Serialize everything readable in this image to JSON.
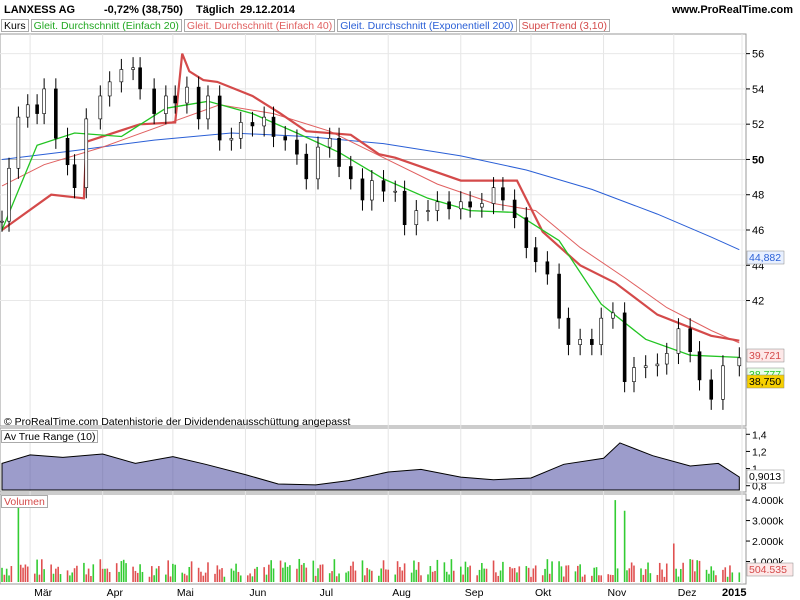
{
  "header": {
    "instrument": "LANXESS AG",
    "change": "-0,72% (38,750)",
    "period": "Täglich",
    "date": "29.12.2014",
    "site": "www.ProRealTime.com"
  },
  "legend": {
    "price": "Kurs",
    "sma20": "Gleit. Durchschnitt (Einfach 20)",
    "sma40": "Gleit. Durchschnitt (Einfach 40)",
    "ema200": "Gleit. Durchschnitt (Exponentiell 200)",
    "supertrend": "SuperTrend (3,10)",
    "atr": "Av True Range (10)",
    "volume": "Volumen"
  },
  "footnote": "© ProRealTime.com  Datenhistorie der Dividendenausschüttung angepasst",
  "colors": {
    "sma20": "#22c422",
    "sma40": "#e06060",
    "ema200": "#2a5fd6",
    "supertrend": "#d44a4a",
    "atr_fill": "#4a4aa0",
    "vol_up": "#33cc33",
    "vol_down": "#e05050",
    "last_price_box": "#f7d000"
  },
  "chart_data": [
    {
      "type": "line",
      "panel": "price",
      "ylim": [
        35,
        57
      ],
      "yticks": [
        42,
        44,
        46,
        48,
        50,
        52,
        54,
        56
      ],
      "x_months": [
        "Mär",
        "Apr",
        "Mai",
        "Jun",
        "Jul",
        "Aug",
        "Sep",
        "Okt",
        "Nov",
        "Dez",
        "2015"
      ],
      "x_range": [
        "2014-02-17",
        "2014-12-31"
      ],
      "price_close": [
        [
          "2014-02-17",
          46.5
        ],
        [
          "2014-02-20",
          49.5
        ],
        [
          "2014-02-24",
          52.4
        ],
        [
          "2014-02-28",
          53.1
        ],
        [
          "2014-03-04",
          52.6
        ],
        [
          "2014-03-07",
          54.0
        ],
        [
          "2014-03-12",
          51.2
        ],
        [
          "2014-03-17",
          49.7
        ],
        [
          "2014-03-20",
          48.4
        ],
        [
          "2014-03-25",
          52.3
        ],
        [
          "2014-03-31",
          53.6
        ],
        [
          "2014-04-04",
          54.4
        ],
        [
          "2014-04-09",
          55.1
        ],
        [
          "2014-04-14",
          55.2
        ],
        [
          "2014-04-17",
          54.0
        ],
        [
          "2014-04-23",
          52.6
        ],
        [
          "2014-04-28",
          53.6
        ],
        [
          "2014-05-02",
          53.2
        ],
        [
          "2014-05-07",
          54.1
        ],
        [
          "2014-05-12",
          52.3
        ],
        [
          "2014-05-16",
          53.6
        ],
        [
          "2014-05-21",
          51.1
        ],
        [
          "2014-05-26",
          51.2
        ],
        [
          "2014-05-30",
          52.1
        ],
        [
          "2014-06-04",
          51.9
        ],
        [
          "2014-06-09",
          52.4
        ],
        [
          "2014-06-13",
          51.3
        ],
        [
          "2014-06-18",
          51.1
        ],
        [
          "2014-06-23",
          50.3
        ],
        [
          "2014-06-27",
          48.9
        ],
        [
          "2014-07-02",
          50.7
        ],
        [
          "2014-07-07",
          51.2
        ],
        [
          "2014-07-11",
          49.6
        ],
        [
          "2014-07-16",
          48.9
        ],
        [
          "2014-07-21",
          47.7
        ],
        [
          "2014-07-25",
          48.8
        ],
        [
          "2014-07-30",
          48.2
        ],
        [
          "2014-08-04",
          48.2
        ],
        [
          "2014-08-08",
          46.3
        ],
        [
          "2014-08-13",
          47.1
        ],
        [
          "2014-08-18",
          47.1
        ],
        [
          "2014-08-22",
          47.6
        ],
        [
          "2014-08-27",
          47.2
        ],
        [
          "2014-09-01",
          47.6
        ],
        [
          "2014-09-05",
          47.3
        ],
        [
          "2014-09-10",
          47.5
        ],
        [
          "2014-09-15",
          48.4
        ],
        [
          "2014-09-19",
          47.7
        ],
        [
          "2014-09-24",
          46.7
        ],
        [
          "2014-09-29",
          45.0
        ],
        [
          "2014-10-03",
          44.2
        ],
        [
          "2014-10-08",
          43.5
        ],
        [
          "2014-10-13",
          41.0
        ],
        [
          "2014-10-17",
          39.5
        ],
        [
          "2014-10-22",
          39.8
        ],
        [
          "2014-10-27",
          39.5
        ],
        [
          "2014-10-31",
          41.0
        ],
        [
          "2014-11-05",
          41.3
        ],
        [
          "2014-11-10",
          37.4
        ],
        [
          "2014-11-14",
          38.2
        ],
        [
          "2014-11-19",
          38.3
        ],
        [
          "2014-11-24",
          38.4
        ],
        [
          "2014-11-28",
          39.0
        ],
        [
          "2014-12-03",
          40.4
        ],
        [
          "2014-12-08",
          39.1
        ],
        [
          "2014-12-12",
          37.5
        ],
        [
          "2014-12-17",
          36.4
        ],
        [
          "2014-12-22",
          38.3
        ],
        [
          "2014-12-29",
          38.75
        ]
      ],
      "sma20": [
        [
          "2014-02-17",
          46.0
        ],
        [
          "2014-03-04",
          50.8
        ],
        [
          "2014-03-20",
          51.5
        ],
        [
          "2014-04-09",
          51.3
        ],
        [
          "2014-04-28",
          52.9
        ],
        [
          "2014-05-16",
          53.3
        ],
        [
          "2014-06-04",
          52.6
        ],
        [
          "2014-06-23",
          51.5
        ],
        [
          "2014-07-11",
          50.4
        ],
        [
          "2014-07-30",
          48.9
        ],
        [
          "2014-08-18",
          47.8
        ],
        [
          "2014-09-05",
          47.1
        ],
        [
          "2014-09-24",
          47.0
        ],
        [
          "2014-10-13",
          45.4
        ],
        [
          "2014-10-31",
          41.8
        ],
        [
          "2014-11-19",
          39.8
        ],
        [
          "2014-12-08",
          38.9
        ],
        [
          "2014-12-29",
          38.777
        ]
      ],
      "sma40": [
        [
          "2014-02-17",
          48.5
        ],
        [
          "2014-03-07",
          49.7
        ],
        [
          "2014-04-01",
          50.7
        ],
        [
          "2014-04-28",
          52.0
        ],
        [
          "2014-05-21",
          53.1
        ],
        [
          "2014-06-13",
          52.6
        ],
        [
          "2014-07-07",
          51.6
        ],
        [
          "2014-07-30",
          50.1
        ],
        [
          "2014-08-22",
          48.6
        ],
        [
          "2014-09-15",
          47.5
        ],
        [
          "2014-10-03",
          47.1
        ],
        [
          "2014-10-22",
          45.0
        ],
        [
          "2014-11-10",
          43.3
        ],
        [
          "2014-11-28",
          41.6
        ],
        [
          "2014-12-17",
          40.3
        ],
        [
          "2014-12-29",
          39.6
        ]
      ],
      "ema200": [
        [
          "2014-02-17",
          50.0
        ],
        [
          "2014-03-20",
          50.5
        ],
        [
          "2014-04-23",
          51.1
        ],
        [
          "2014-05-26",
          51.5
        ],
        [
          "2014-06-27",
          51.3
        ],
        [
          "2014-07-30",
          50.9
        ],
        [
          "2014-09-01",
          50.2
        ],
        [
          "2014-09-29",
          49.4
        ],
        [
          "2014-10-27",
          48.3
        ],
        [
          "2014-11-24",
          46.9
        ],
        [
          "2014-12-17",
          45.6
        ],
        [
          "2014-12-29",
          44.882
        ]
      ],
      "supertrend": [
        [
          "2014-02-17",
          46.0
        ],
        [
          "2014-03-10",
          48.0
        ],
        [
          "2014-03-24",
          47.8
        ],
        [
          "2014-03-25",
          51.0
        ],
        [
          "2014-04-17",
          52.0
        ],
        [
          "2014-04-18",
          52.0
        ],
        [
          "2014-05-02",
          52.1
        ],
        [
          "2014-05-05",
          56.0
        ],
        [
          "2014-05-08",
          55.0
        ],
        [
          "2014-05-14",
          54.5
        ],
        [
          "2014-05-20",
          54.4
        ],
        [
          "2014-06-04",
          53.6
        ],
        [
          "2014-06-16",
          52.6
        ],
        [
          "2014-06-27",
          51.6
        ],
        [
          "2014-07-16",
          51.4
        ],
        [
          "2014-07-28",
          50.3
        ],
        [
          "2014-08-04",
          50.1
        ],
        [
          "2014-09-01",
          48.8
        ],
        [
          "2014-09-25",
          48.8
        ],
        [
          "2014-10-06",
          45.9
        ],
        [
          "2014-10-22",
          44.0
        ],
        [
          "2014-11-06",
          43.0
        ],
        [
          "2014-11-24",
          41.2
        ],
        [
          "2014-12-17",
          40.0
        ],
        [
          "2014-12-29",
          39.721
        ]
      ],
      "labels": [
        "39,721",
        "38,777",
        "38,750",
        "44,882"
      ],
      "last_price": 38.75
    },
    {
      "type": "area",
      "panel": "atr",
      "title": "Av True Range (10)",
      "ylim": [
        0.75,
        1.45
      ],
      "yticks": [
        1.4,
        1.2,
        1.0,
        0.8
      ],
      "ytick_labels": [
        "1,4",
        "1,2",
        "1",
        "0,8"
      ],
      "values": [
        [
          "2014-02-17",
          1.06
        ],
        [
          "2014-03-01",
          1.16
        ],
        [
          "2014-03-15",
          1.13
        ],
        [
          "2014-04-01",
          1.17
        ],
        [
          "2014-04-15",
          1.06
        ],
        [
          "2014-05-01",
          1.14
        ],
        [
          "2014-05-15",
          1.05
        ],
        [
          "2014-06-01",
          0.93
        ],
        [
          "2014-06-15",
          0.82
        ],
        [
          "2014-07-01",
          0.81
        ],
        [
          "2014-07-15",
          0.86
        ],
        [
          "2014-08-01",
          0.96
        ],
        [
          "2014-08-15",
          0.99
        ],
        [
          "2014-09-01",
          0.9
        ],
        [
          "2014-09-15",
          0.87
        ],
        [
          "2014-10-01",
          0.89
        ],
        [
          "2014-10-15",
          1.05
        ],
        [
          "2014-11-01",
          1.12
        ],
        [
          "2014-11-08",
          1.3
        ],
        [
          "2014-11-22",
          1.15
        ],
        [
          "2014-12-08",
          1.03
        ],
        [
          "2014-12-20",
          1.06
        ],
        [
          "2014-12-29",
          0.9013
        ]
      ],
      "last_label": "0,9013"
    },
    {
      "type": "bar",
      "panel": "volume",
      "title": "Volumen",
      "ylim": [
        0,
        4200
      ],
      "yticks": [
        4000,
        3000,
        2000,
        1000
      ],
      "ytick_labels": [
        "4.000k",
        "3.000k",
        "2.000k",
        "1.000k"
      ],
      "spikes": [
        [
          "2014-02-24",
          3850
        ],
        [
          "2014-11-06",
          4000
        ],
        [
          "2014-11-10",
          3480
        ],
        [
          "2014-12-01",
          1880
        ]
      ],
      "last_label": "504.535"
    }
  ]
}
